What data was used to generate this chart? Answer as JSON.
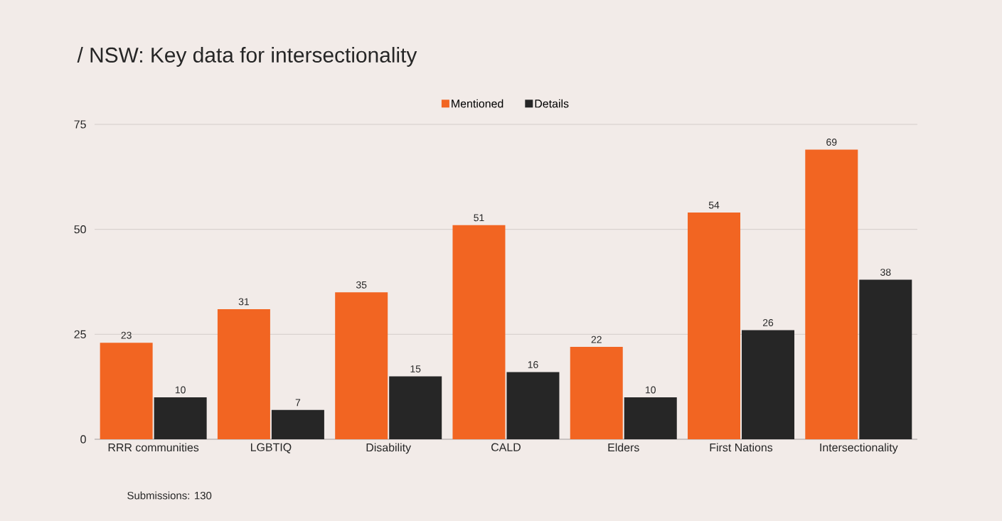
{
  "chart_data": {
    "type": "bar",
    "title": "/ NSW: Key data for intersectionality",
    "categories": [
      "RRR communities",
      "LGBTIQ",
      "Disability",
      "CALD",
      "Elders",
      "First Nations",
      "Intersectionality"
    ],
    "series": [
      {
        "name": "Mentioned",
        "color": "#f26522",
        "values": [
          23,
          31,
          35,
          51,
          22,
          54,
          69
        ]
      },
      {
        "name": "Details",
        "color": "#262626",
        "values": [
          10,
          7,
          15,
          16,
          10,
          26,
          38
        ]
      }
    ],
    "ylim": [
      0,
      75
    ],
    "yticks": [
      0,
      25,
      50,
      75
    ],
    "grid": "y",
    "legend": "top",
    "data_labels": true,
    "annotations": [
      "Submissions: 130"
    ]
  }
}
